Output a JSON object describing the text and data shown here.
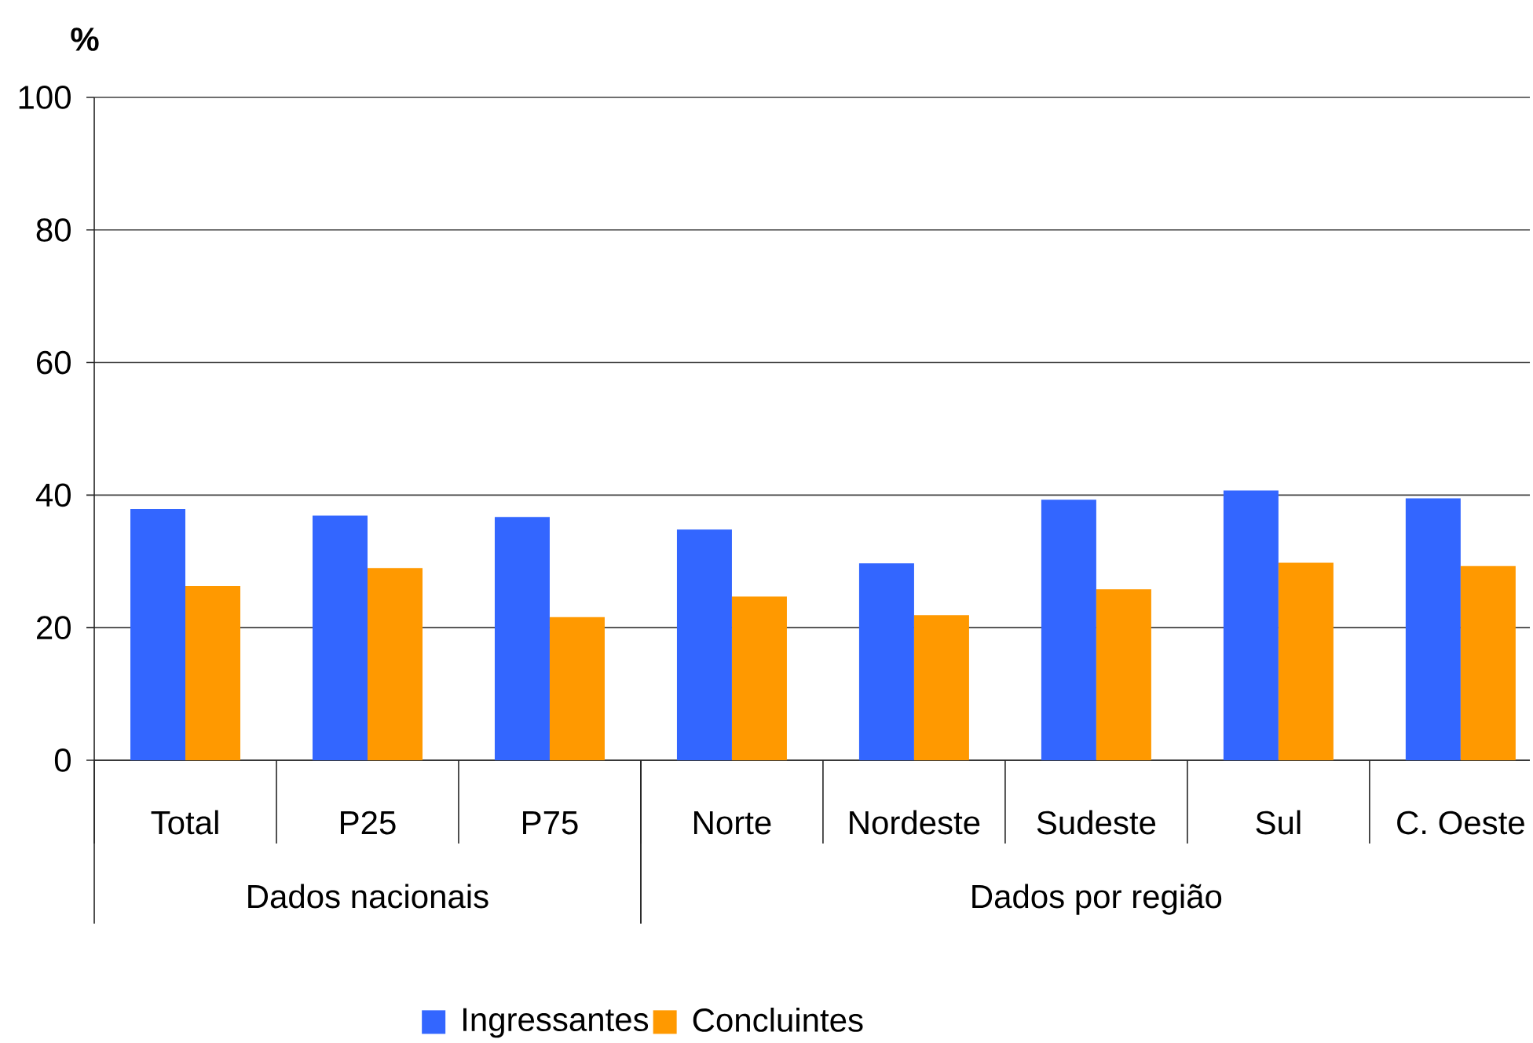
{
  "chart_data": {
    "type": "bar",
    "ylabel": "%",
    "categories": [
      "Total",
      "P25",
      "P75",
      "Norte",
      "Nordeste",
      "Sudeste",
      "Sul",
      "C. Oeste"
    ],
    "series": [
      {
        "name": "Ingressantes",
        "color": "#3366ff",
        "values": [
          37.9,
          36.9,
          36.7,
          34.8,
          29.7,
          39.3,
          40.7,
          39.5
        ]
      },
      {
        "name": "Concluintes",
        "color": "#ff9900",
        "values": [
          26.3,
          29.0,
          21.6,
          24.7,
          21.9,
          25.8,
          29.8,
          29.3
        ]
      }
    ],
    "ylim": [
      0,
      100
    ],
    "yticks": [
      0,
      20,
      40,
      60,
      80,
      100
    ],
    "grid": "y",
    "legend": "bottom",
    "annotations": [
      "Dados nacionais",
      "Dados por região"
    ]
  }
}
